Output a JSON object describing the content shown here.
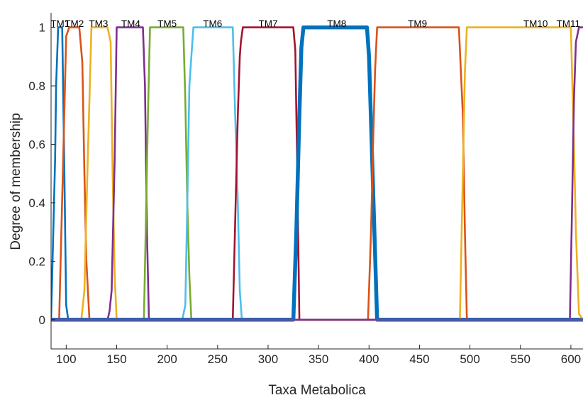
{
  "chart_data": {
    "type": "line",
    "title": "",
    "xlabel": "Taxa Metabolica",
    "ylabel": "Degree of membership",
    "xlim": [
      85,
      612
    ],
    "ylim": [
      -0.1,
      1.05
    ],
    "xticks": [
      100,
      150,
      200,
      250,
      300,
      350,
      400,
      450,
      500,
      550,
      600
    ],
    "xtick_labels": [
      "100",
      "150",
      "200",
      "250",
      "300",
      "350",
      "400",
      "450",
      "500",
      "550",
      "600"
    ],
    "yticks": [
      0,
      0.2,
      0.4,
      0.6,
      0.8,
      1
    ],
    "ytick_labels": [
      "0",
      "0.2",
      "0.4",
      "0.6",
      "0.8",
      "1"
    ],
    "grid": false,
    "legend": "none",
    "series": [
      {
        "name": "TM1",
        "label_x": 94,
        "color": "#0072BD",
        "x": [
          85,
          89,
          90,
          92,
          94,
          96,
          98,
          100,
          102,
          612
        ],
        "y": [
          0,
          0.55,
          0.8,
          1,
          1,
          1,
          0.55,
          0.05,
          0,
          0
        ]
      },
      {
        "name": "TM2",
        "label_x": 108,
        "color": "#D95319",
        "x": [
          85,
          93,
          97,
          100,
          103,
          113,
          116,
          118,
          120,
          123,
          612
        ],
        "y": [
          0,
          0,
          0.55,
          0.97,
          1,
          1,
          0.88,
          0.5,
          0.2,
          0,
          0
        ]
      },
      {
        "name": "TM3",
        "label_x": 132,
        "color": "#EDB120",
        "x": [
          85,
          115,
          118,
          121,
          125,
          141,
          144,
          146,
          148,
          150,
          612
        ],
        "y": [
          0,
          0,
          0.1,
          0.5,
          1,
          1,
          0.95,
          0.5,
          0.15,
          0,
          0
        ]
      },
      {
        "name": "TM4",
        "label_x": 164,
        "color": "#7E2F8E",
        "x": [
          85,
          141,
          143,
          145,
          148,
          150,
          176,
          178,
          180,
          182,
          612
        ],
        "y": [
          0,
          0,
          0.03,
          0.1,
          0.55,
          1,
          1,
          0.8,
          0.3,
          0,
          0
        ]
      },
      {
        "name": "TM5",
        "label_x": 200,
        "color": "#77AC30",
        "x": [
          85,
          177,
          179,
          181,
          183,
          216,
          218,
          220,
          222,
          224,
          612
        ],
        "y": [
          0,
          0,
          0.35,
          0.7,
          1,
          1,
          0.75,
          0.4,
          0.15,
          0,
          0
        ]
      },
      {
        "name": "TM6",
        "label_x": 245,
        "color": "#4DBEEE",
        "x": [
          85,
          215,
          218,
          220,
          222,
          224,
          226,
          265,
          267,
          270,
          272,
          274,
          612
        ],
        "y": [
          0,
          0,
          0.05,
          0.4,
          0.8,
          0.9,
          1,
          1,
          0.75,
          0.4,
          0.1,
          0,
          0
        ]
      },
      {
        "name": "TM7",
        "label_x": 300,
        "color": "#A2142F",
        "x": [
          85,
          265,
          270,
          272,
          273,
          275,
          325,
          327,
          329,
          331,
          612
        ],
        "y": [
          0,
          0,
          0.7,
          0.9,
          0.95,
          1,
          1,
          0.92,
          0.5,
          0,
          0
        ]
      },
      {
        "name": "TM8",
        "label_x": 368,
        "color": "#0072BD",
        "width": 5.5,
        "x": [
          85,
          325,
          328,
          331,
          333,
          335,
          398,
          400,
          404,
          408,
          612
        ],
        "y": [
          0,
          0,
          0.3,
          0.7,
          0.93,
          1,
          1,
          0.9,
          0.45,
          0,
          0
        ]
      },
      {
        "name": "TM9",
        "label_x": 448,
        "color": "#D95319",
        "x": [
          85,
          399,
          402,
          404,
          406,
          408,
          489,
          493,
          495,
          497,
          612
        ],
        "y": [
          0,
          0,
          0.3,
          0.6,
          0.85,
          1,
          1,
          0.7,
          0.3,
          0,
          0
        ]
      },
      {
        "name": "TM10",
        "label_x": 565,
        "color": "#EDB120",
        "x": [
          85,
          490,
          493,
          495,
          497,
          600,
          603,
          605,
          608,
          612
        ],
        "y": [
          0,
          0,
          0.5,
          0.85,
          1,
          1,
          0.6,
          0.3,
          0.02,
          0
        ]
      },
      {
        "name": "TM11",
        "label_x": 616,
        "color": "#7E2F8E",
        "x": [
          85,
          599,
          601,
          603,
          605,
          608,
          612
        ],
        "y": [
          0,
          0,
          0.35,
          0.75,
          0.95,
          1,
          1
        ]
      },
      {
        "name": "",
        "color": "#4A5AA6",
        "width": 4.5,
        "x": [
          85,
          325
        ],
        "y": [
          0,
          0
        ]
      },
      {
        "name": "",
        "color": "#4A5AA6",
        "width": 4.5,
        "x": [
          408,
          612
        ],
        "y": [
          0,
          0
        ]
      }
    ]
  }
}
